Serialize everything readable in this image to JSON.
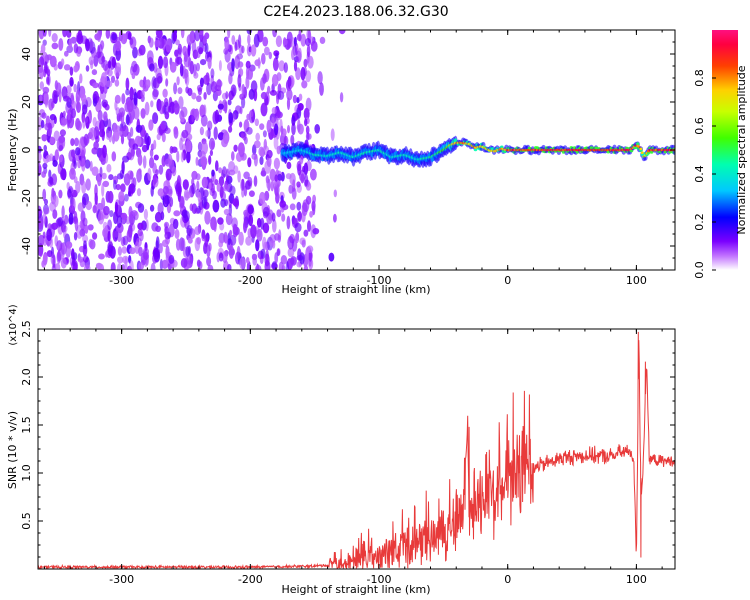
{
  "title": "C2E4.2023.188.06.32.G30",
  "chart_data": [
    {
      "type": "heatmap",
      "xlabel": "Height of straight line (km)",
      "ylabel": "Frequency (Hz)",
      "xlim": [
        -365,
        130
      ],
      "ylim": [
        -50,
        50
      ],
      "x_ticks": [
        -300,
        -200,
        -100,
        0,
        100
      ],
      "y_ticks": [
        -40,
        -20,
        0,
        20,
        40
      ],
      "colorbar": {
        "label": "Normalized spectral amplitude",
        "range": [
          0,
          1
        ],
        "ticks": [
          "0.0",
          "0.2",
          "0.4",
          "0.6",
          "0.8"
        ],
        "tick_values": [
          0.0,
          0.2,
          0.4,
          0.6,
          0.8
        ],
        "colormap": "hsv (purple to red)"
      },
      "noise_region": {
        "x": [
          -365,
          -150
        ],
        "y": [
          -50,
          50
        ],
        "amplitude": 0.12
      },
      "signal_track": {
        "x": [
          -175,
          -160,
          -150,
          -140,
          -130,
          -120,
          -110,
          -100,
          -90,
          -80,
          -70,
          -60,
          -50,
          -45,
          -40,
          -35,
          -30,
          -25,
          -20,
          -15,
          -10,
          -5,
          0,
          10,
          20,
          40,
          60,
          80,
          95,
          100,
          103,
          106,
          110,
          120,
          130
        ],
        "y": [
          -1.5,
          0,
          -2,
          -2.5,
          -1,
          -3,
          -1,
          0,
          -3,
          -2,
          -4,
          -3,
          0,
          2,
          3,
          3,
          2.5,
          1,
          1.5,
          0,
          -0.5,
          0.5,
          0,
          0,
          0,
          0,
          0,
          0,
          0,
          2,
          1,
          -3,
          0,
          0,
          0
        ],
        "amplitude": [
          0.35,
          0.4,
          0.45,
          0.45,
          0.45,
          0.45,
          0.5,
          0.45,
          0.45,
          0.45,
          0.45,
          0.5,
          0.6,
          0.7,
          0.8,
          0.85,
          0.8,
          0.8,
          0.8,
          0.8,
          0.8,
          0.8,
          0.9,
          0.95,
          0.95,
          0.95,
          0.95,
          0.95,
          0.95,
          0.9,
          0.85,
          0.7,
          0.95,
          0.95,
          0.95
        ]
      }
    },
    {
      "type": "line",
      "xlabel": "Height of straight line (km)",
      "ylabel": "SNR (10 * v/v)",
      "y_multiplier": "(x10^4)",
      "xlim": [
        -365,
        130
      ],
      "ylim": [
        0,
        2.5
      ],
      "x_ticks": [
        -300,
        -200,
        -100,
        0,
        100
      ],
      "y_ticks": [
        0.5,
        1.0,
        1.5,
        2.0,
        2.5
      ],
      "y_tick_labels": [
        "0.5",
        "1.0",
        "1.5",
        "2.0",
        "2.5"
      ],
      "color": "#e83a3a",
      "series": [
        {
          "x": [
            -365,
            -300,
            -200,
            -150,
            -130,
            -120,
            -110,
            -100,
            -90,
            -80,
            -70,
            -60,
            -50,
            -45,
            -40,
            -35,
            -31,
            -30,
            -28,
            -20,
            -10,
            0,
            10,
            20,
            30,
            40,
            50,
            60,
            70,
            80,
            85,
            90,
            95,
            98,
            100,
            102,
            103,
            104,
            105,
            108,
            110,
            120,
            130
          ],
          "y": [
            0.02,
            0.02,
            0.02,
            0.03,
            0.05,
            0.07,
            0.1,
            0.12,
            0.15,
            0.2,
            0.25,
            0.3,
            0.38,
            0.45,
            0.52,
            0.55,
            1.45,
            0.6,
            0.65,
            0.72,
            0.8,
            0.88,
            0.98,
            1.05,
            1.1,
            1.15,
            1.17,
            1.18,
            1.18,
            1.17,
            1.2,
            1.22,
            1.22,
            1.15,
            0.1,
            2.5,
            1.2,
            0.8,
            1.0,
            2.15,
            1.15,
            1.12,
            1.13
          ],
          "spikes": [
            {
              "x": -30,
              "y": 1.48
            },
            {
              "x": 101.5,
              "y": 2.47
            },
            {
              "x": 103.5,
              "y": 0.12
            },
            {
              "x": 107,
              "y": 2.16
            }
          ]
        }
      ]
    }
  ]
}
